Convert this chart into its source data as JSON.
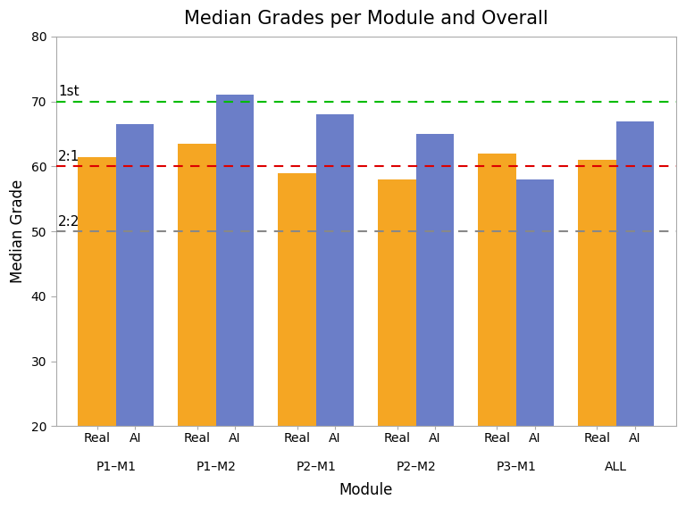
{
  "title": "Median Grades per Module and Overall",
  "xlabel": "Module",
  "ylabel": "Median Grade",
  "ylim": [
    20,
    80
  ],
  "yticks": [
    20,
    30,
    40,
    50,
    60,
    70,
    80
  ],
  "groups": [
    "P1–M1",
    "P1–M2",
    "P2–M1",
    "P2–M2",
    "P3–M1",
    "ALL"
  ],
  "real_values": [
    61.5,
    63.5,
    59.0,
    58.0,
    62.0,
    61.0
  ],
  "ai_values": [
    66.5,
    71.0,
    68.0,
    65.0,
    58.0,
    67.0
  ],
  "real_color": "#F5A623",
  "ai_color": "#6B7EC8",
  "hline_1st": 70,
  "hline_21": 60,
  "hline_22": 50,
  "hline_1st_color": "#00BB00",
  "hline_21_color": "#DD0000",
  "hline_22_color": "#888888",
  "label_1st": "1st",
  "label_21": "2:1",
  "label_22": "2:2",
  "bar_width": 0.38,
  "title_fontsize": 15,
  "axis_label_fontsize": 12,
  "tick_fontsize": 10,
  "annotation_fontsize": 11
}
